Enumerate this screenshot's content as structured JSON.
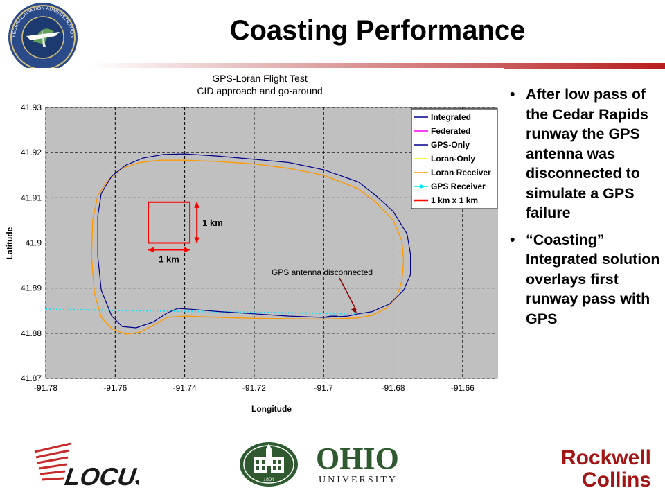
{
  "slide": {
    "title": "Coasting Performance",
    "bullets": [
      "After low pass of the Cedar Rapids runway the GPS antenna was disconnected to simulate a GPS failure",
      "“Coasting” Integrated solution overlays first runway pass with GPS"
    ]
  },
  "logos": {
    "faa_seal_text": "FEDERAL AVIATION ADMINISTRATION",
    "locus": "LOCUS",
    "ohio_line1": "OHIO",
    "ohio_line2": "UNIVERSITY",
    "ohio_year": "1804",
    "rockwell_line1": "Rockwell",
    "rockwell_line2": "Collins"
  },
  "chart_data": {
    "type": "line",
    "title": "GPS-Loran Flight Test",
    "subtitle": "CID approach and go-around",
    "xlabel": "Longitude",
    "ylabel": "Latitude",
    "xlim": [
      -91.78,
      -91.65
    ],
    "ylim": [
      41.87,
      41.93
    ],
    "x_ticks": [
      "-91.78",
      "-91.76",
      "-91.74",
      "-91.72",
      "-91.7",
      "-91.68",
      "-91.66"
    ],
    "y_ticks": [
      "41.93",
      "41.92",
      "41.91",
      "41.9",
      "41.89",
      "41.88",
      "41.87"
    ],
    "grid": true,
    "plot_background": "#c0c0c0",
    "legend_position": "top-right",
    "series": [
      {
        "name": "Integrated",
        "color": "#00008b",
        "x": [
          -91.69,
          -91.686,
          -91.681,
          -91.677,
          -91.675,
          -91.675,
          -91.676,
          -91.68,
          -91.685,
          -91.69,
          -91.7,
          -91.71,
          -91.72,
          -91.73,
          -91.74,
          -91.746,
          -91.752,
          -91.757,
          -91.761,
          -91.764,
          -91.765,
          -91.765,
          -91.764,
          -91.761,
          -91.758,
          -91.754,
          -91.749,
          -91.745,
          -91.742,
          -91.738,
          -91.73,
          -91.72,
          -91.71,
          -91.7,
          -91.693,
          -91.69
        ],
        "y": [
          41.8843,
          41.8848,
          41.8865,
          41.8895,
          41.893,
          41.8975,
          41.902,
          41.907,
          41.9105,
          41.9135,
          41.9162,
          41.9178,
          41.9185,
          41.9192,
          41.9197,
          41.9196,
          41.9188,
          41.9172,
          41.9148,
          41.911,
          41.906,
          41.897,
          41.8895,
          41.8838,
          41.8815,
          41.8812,
          41.8825,
          41.8845,
          41.8855,
          41.8853,
          41.8848,
          41.8843,
          41.8838,
          41.8835,
          41.8838,
          41.8843
        ]
      },
      {
        "name": "Federated",
        "color": "#ff00ff",
        "x": [],
        "y": []
      },
      {
        "name": "GPS-Only",
        "color": "#00008b",
        "x": [
          -91.7,
          -91.698,
          -91.696
        ],
        "y": [
          41.8835,
          41.8838,
          41.8838
        ]
      },
      {
        "name": "Loran-Only",
        "color": "#ffff00",
        "x": [],
        "y": []
      },
      {
        "name": "Loran Receiver",
        "color": "#ff9900",
        "x": [
          -91.69,
          -91.686,
          -91.682,
          -91.679,
          -91.6775,
          -91.677,
          -91.6775,
          -91.68,
          -91.685,
          -91.69,
          -91.7,
          -91.71,
          -91.72,
          -91.73,
          -91.74,
          -91.747,
          -91.753,
          -91.758,
          -91.762,
          -91.765,
          -91.7665,
          -91.7668,
          -91.766,
          -91.764,
          -91.761,
          -91.757,
          -91.753,
          -91.749,
          -91.745,
          -91.74,
          -91.73,
          -91.72,
          -91.71,
          -91.7,
          -91.693,
          -91.69
        ],
        "y": [
          41.8834,
          41.884,
          41.8855,
          41.888,
          41.8915,
          41.896,
          41.9005,
          41.905,
          41.909,
          41.912,
          41.915,
          41.9165,
          41.9175,
          41.918,
          41.9183,
          41.9183,
          41.9178,
          41.9165,
          41.914,
          41.9105,
          41.905,
          41.897,
          41.889,
          41.8835,
          41.881,
          41.8798,
          41.8802,
          41.8818,
          41.8835,
          41.8838,
          41.8835,
          41.8833,
          41.8832,
          41.8831,
          41.8833,
          41.8834
        ]
      },
      {
        "name": "GPS Receiver",
        "color": "#00e5ff",
        "x": [
          -91.78,
          -91.691
        ],
        "y": [
          41.8853,
          41.8843
        ]
      },
      {
        "name": "1 km x 1 km",
        "color": "#ff0000",
        "x": [
          -91.7505,
          -91.7385,
          -91.7385,
          -91.7505,
          -91.7505
        ],
        "y": [
          41.909,
          41.909,
          41.9,
          41.9,
          41.909
        ]
      }
    ],
    "annotations": [
      {
        "text": "1 km",
        "near": "right of square"
      },
      {
        "text": "1 km",
        "near": "below square"
      },
      {
        "text": "GPS antenna disconnected",
        "points_to": [
          -91.6905,
          41.8843
        ]
      }
    ]
  }
}
